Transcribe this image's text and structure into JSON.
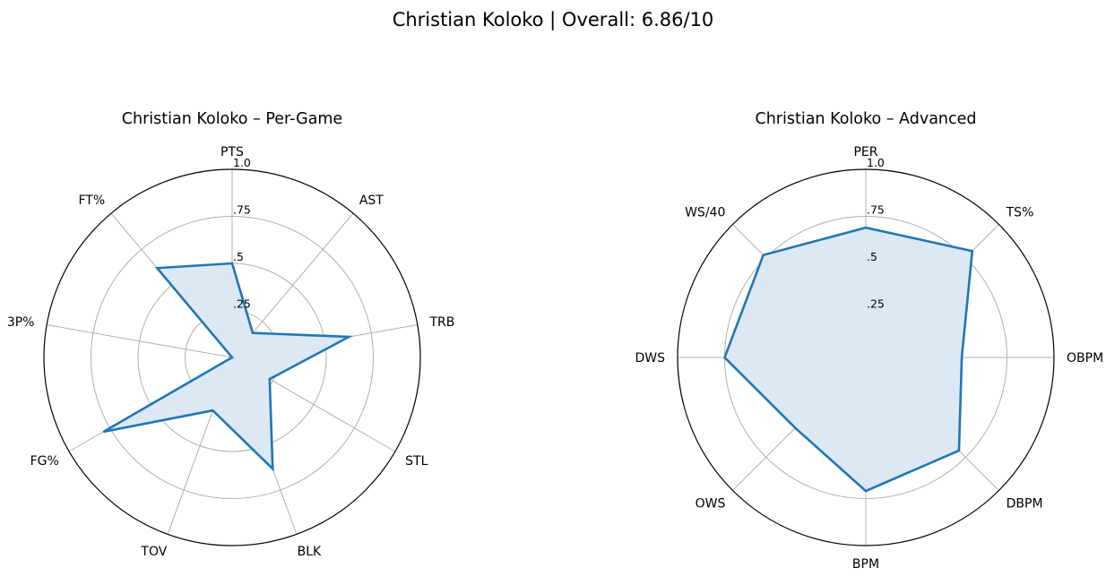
{
  "figure": {
    "suptitle": "Christian Koloko | Overall: 6.86/10"
  },
  "style": {
    "line_color": "#1f77b4",
    "fill_color": "#dce8f3",
    "grid_color": "#b0b0b0",
    "frame_color": "#000000"
  },
  "chart_data": [
    {
      "type": "radar",
      "title": "Christian Koloko – Per-Game",
      "categories": [
        "PTS",
        "AST",
        "TRB",
        "STL",
        "BLK",
        "TOV",
        "FG%",
        "3P%",
        "FT%"
      ],
      "values": [
        0.5,
        0.17,
        0.63,
        0.23,
        0.63,
        0.3,
        0.79,
        0.0,
        0.62
      ],
      "rlim": [
        0,
        1
      ],
      "r_ticks": [
        0.25,
        0.5,
        0.75,
        1.0
      ],
      "r_tick_labels": [
        ".25",
        ".5",
        ".75",
        "1.0"
      ],
      "grid": true
    },
    {
      "type": "radar",
      "title": "Christian Koloko – Advanced",
      "categories": [
        "PER",
        "TS%",
        "OBPM",
        "DBPM",
        "BPM",
        "OWS",
        "DWS",
        "WS/40"
      ],
      "values": [
        0.69,
        0.8,
        0.51,
        0.7,
        0.71,
        0.53,
        0.75,
        0.77
      ],
      "rlim": [
        0,
        1
      ],
      "r_ticks": [
        0.25,
        0.5,
        0.75,
        1.0
      ],
      "r_tick_labels": [
        ".25",
        ".5",
        ".75",
        "1.0"
      ],
      "grid": true
    }
  ]
}
